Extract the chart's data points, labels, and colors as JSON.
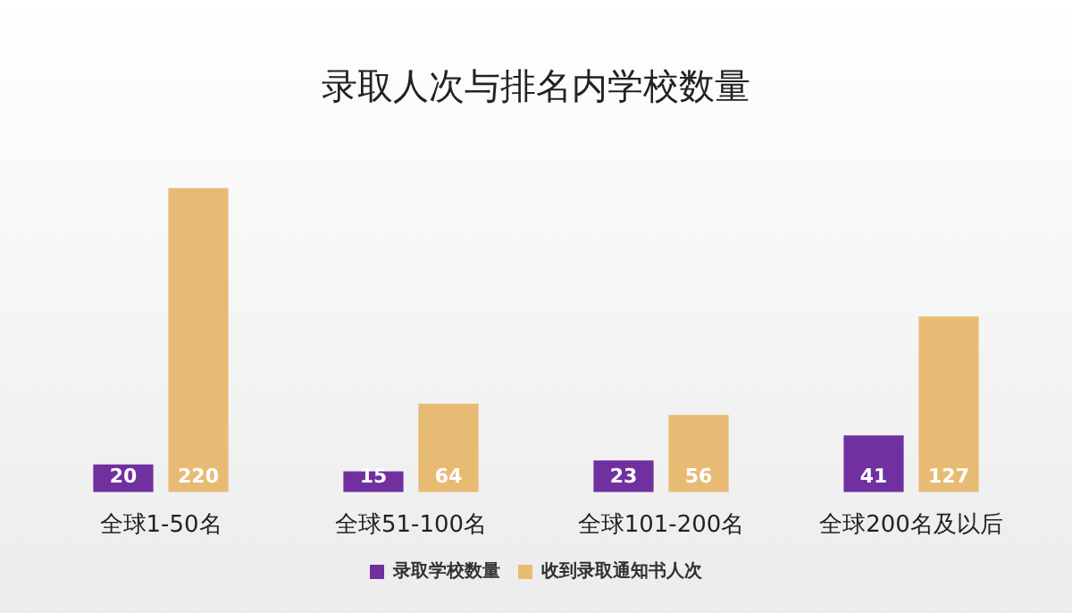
{
  "chart_data": {
    "type": "bar",
    "title": "录取人次与排名内学校数量",
    "categories": [
      "全球1-50名",
      "全球51-100名",
      "全球101-200名",
      "全球200名及以后"
    ],
    "series": [
      {
        "name": "录取学校数量",
        "color": "#7030a0",
        "values": [
          20,
          15,
          23,
          41
        ]
      },
      {
        "name": "收到录取通知书人次",
        "color": "#e8bb74",
        "values": [
          220,
          64,
          56,
          127
        ]
      }
    ],
    "data_labels": true,
    "legend": "bottom",
    "grid": false,
    "tick_labels": "x"
  }
}
